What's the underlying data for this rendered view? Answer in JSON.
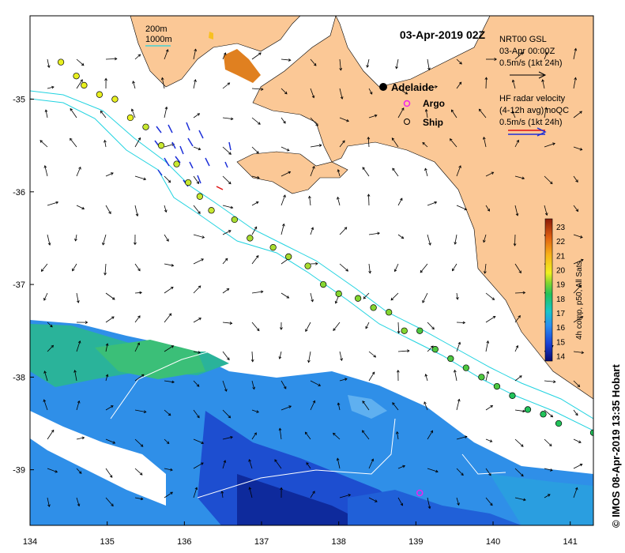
{
  "map": {
    "title": "03-Apr-2019 02Z",
    "lon_ticks": [
      "134",
      "135",
      "136",
      "137",
      "138",
      "139",
      "140",
      "141"
    ],
    "lat_ticks": [
      "-35",
      "-36",
      "-37",
      "-38",
      "-39"
    ],
    "lon_range": [
      134,
      141.3
    ],
    "lat_range": [
      -39.6,
      -34.1
    ],
    "contours": {
      "label_200": "200m",
      "label_1000": "1000m",
      "color": "#22d3e0"
    },
    "colors": {
      "land": "#fbc896",
      "ocean": "#ffffff",
      "contour": "#22d3e0",
      "hf_blue": "#1c2fd8",
      "hf_red": "#e01010",
      "argo": "#ee22ee"
    }
  },
  "legend": {
    "adelaide": "Adelaide",
    "argo": "Argo",
    "ship": "Ship",
    "gsl_title": "NRT00 GSL",
    "gsl_time": "03-Apr 00:00Z",
    "gsl_scale": "0.5m/s (1kt 24h)",
    "hf_title": "HF radar velocity",
    "hf_avg": "(4-12h avg) noQC",
    "hf_scale": "0.5m/s (1kt 24h)"
  },
  "colorbar": {
    "label": "4h comp, p50, All Sats",
    "ticks": [
      "14",
      "15",
      "16",
      "17",
      "18",
      "19",
      "20",
      "21",
      "22",
      "23"
    ],
    "range": [
      13.7,
      23.6
    ]
  },
  "credit": "© IMOS 08-Apr-2019 13:35 Hobart",
  "ship_track": [
    [
      134.4,
      -34.6
    ],
    [
      134.6,
      -34.75
    ],
    [
      134.7,
      -34.85
    ],
    [
      134.9,
      -34.95
    ],
    [
      135.1,
      -35.0
    ],
    [
      135.3,
      -35.2
    ],
    [
      135.5,
      -35.3
    ],
    [
      135.7,
      -35.5
    ],
    [
      135.9,
      -35.7
    ],
    [
      136.05,
      -35.9
    ],
    [
      136.2,
      -36.05
    ],
    [
      136.35,
      -36.2
    ],
    [
      136.65,
      -36.3
    ],
    [
      136.85,
      -36.5
    ],
    [
      137.15,
      -36.6
    ],
    [
      137.35,
      -36.7
    ],
    [
      137.6,
      -36.8
    ],
    [
      137.8,
      -37.0
    ],
    [
      138.0,
      -37.1
    ],
    [
      138.25,
      -37.15
    ],
    [
      138.45,
      -37.25
    ],
    [
      138.65,
      -37.3
    ],
    [
      138.85,
      -37.5
    ],
    [
      139.05,
      -37.5
    ],
    [
      139.25,
      -37.7
    ],
    [
      139.45,
      -37.8
    ],
    [
      139.65,
      -37.9
    ],
    [
      139.85,
      -38.0
    ],
    [
      140.05,
      -38.1
    ],
    [
      140.25,
      -38.2
    ],
    [
      140.45,
      -38.35
    ],
    [
      140.65,
      -38.4
    ],
    [
      140.85,
      -38.5
    ],
    [
      141.3,
      -38.6
    ]
  ],
  "argo_float": [
    139.05,
    -39.25
  ]
}
